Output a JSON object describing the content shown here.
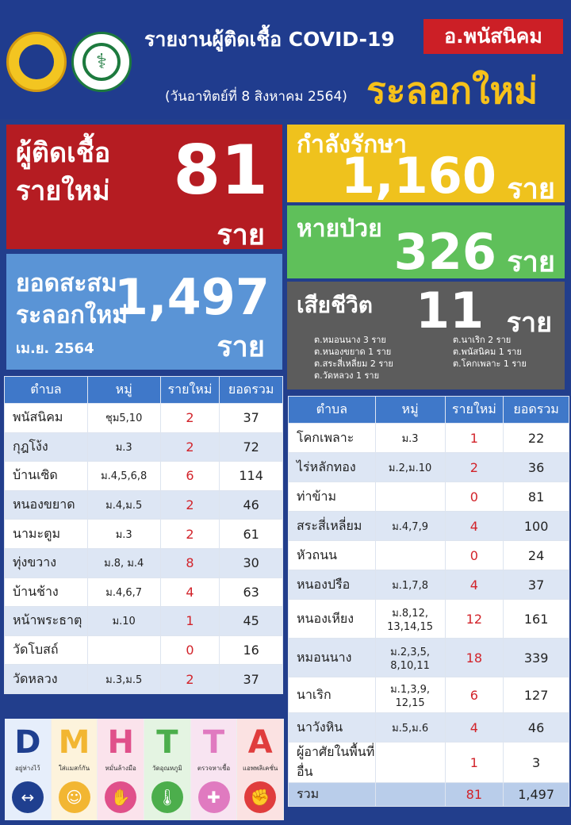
{
  "header": {
    "title": "รายงานผู้ติดเชื้อ COVID-19",
    "district": "อ.พนัสนิคม",
    "date": "(วันอาทิตย์ที่ 8 สิงหาคม 2564)",
    "wave": "ระลอกใหม่"
  },
  "stats": {
    "new": {
      "label1": "ผู้ติดเชื้อ",
      "label2": "รายใหม่",
      "value": "81",
      "unit": "ราย"
    },
    "cumulative": {
      "label1": "ยอดสะสม",
      "label2": "ระลอกใหม่",
      "label3": "เม.ย. 2564",
      "value": "1,497",
      "unit": "ราย"
    },
    "treating": {
      "label": "กำลังรักษา",
      "value": "1,160",
      "unit": "ราย"
    },
    "recovered": {
      "label": "หายป่วย",
      "value": "326",
      "unit": "ราย"
    },
    "deaths": {
      "label": "เสียชีวิต",
      "value": "11",
      "unit": "ราย",
      "list": [
        "ต.หมอนนาง 3 ราย",
        "ต.นาเริก 2 ราย",
        "ต.หนองขยาด 1 ราย",
        "ต.พนัสนิคม 1 ราย",
        "ต.สระสี่เหลี่ยม 2 ราย",
        "ต.โคกเพลาะ 1 ราย",
        "ต.วัดหลวง 1 ราย"
      ]
    }
  },
  "table_headers": {
    "tambon": "ตำบล",
    "moo": "หมู่",
    "new": "รายใหม่",
    "total": "ยอดรวม"
  },
  "left_rows": [
    {
      "tambon": "พนัสนิคม",
      "moo": "ชุม5,10",
      "new": "2",
      "total": "37"
    },
    {
      "tambon": "กุฎโง้ง",
      "moo": "ม.3",
      "new": "2",
      "total": "72"
    },
    {
      "tambon": "บ้านเซิด",
      "moo": "ม.4,5,6,8",
      "new": "6",
      "total": "114"
    },
    {
      "tambon": "หนองขยาด",
      "moo": "ม.4,ม.5",
      "new": "2",
      "total": "46"
    },
    {
      "tambon": "นามะตูม",
      "moo": "ม.3",
      "new": "2",
      "total": "61"
    },
    {
      "tambon": "ทุ่งขวาง",
      "moo": "ม.8, ม.4",
      "new": "8",
      "total": "30"
    },
    {
      "tambon": "บ้านช้าง",
      "moo": "ม.4,6,7",
      "new": "4",
      "total": "63"
    },
    {
      "tambon": "หน้าพระธาตุ",
      "moo": "ม.10",
      "new": "1",
      "total": "45"
    },
    {
      "tambon": "วัดโบสถ์",
      "moo": "",
      "new": "0",
      "total": "16"
    },
    {
      "tambon": "วัดหลวง",
      "moo": "ม.3,ม.5",
      "new": "2",
      "total": "37"
    }
  ],
  "right_rows": [
    {
      "tambon": "โคกเพลาะ",
      "moo": "ม.3",
      "new": "1",
      "total": "22"
    },
    {
      "tambon": "ไร่หลักทอง",
      "moo": "ม.2,ม.10",
      "new": "2",
      "total": "36"
    },
    {
      "tambon": "ท่าข้าม",
      "moo": "",
      "new": "0",
      "total": "81"
    },
    {
      "tambon": "สระสี่เหลี่ยม",
      "moo": "ม.4,7,9",
      "new": "4",
      "total": "100"
    },
    {
      "tambon": "หัวถนน",
      "moo": "",
      "new": "0",
      "total": "24"
    },
    {
      "tambon": "หนองปรือ",
      "moo": "ม.1,7,8",
      "new": "4",
      "total": "37"
    },
    {
      "tambon": "หนองเหียง",
      "moo": "ม.8,12, 13,14,15",
      "new": "12",
      "total": "161"
    },
    {
      "tambon": "หมอนนาง",
      "moo": "ม.2,3,5, 8,10,11",
      "new": "18",
      "total": "339"
    },
    {
      "tambon": "นาเริก",
      "moo": "ม.1,3,9, 12,15",
      "new": "6",
      "total": "127"
    },
    {
      "tambon": "นาวังหิน",
      "moo": "ม.5,ม.6",
      "new": "4",
      "total": "46"
    },
    {
      "tambon": "ผู้อาศัยในพื้นที่อื่น",
      "moo": "",
      "new": "1",
      "total": "3"
    }
  ],
  "total_row": {
    "label": "รวม",
    "new": "81",
    "total": "1,497"
  },
  "dmhtta": [
    {
      "letter": "D",
      "text": "อยู่ห่างไว้",
      "color": "#1f3f8f",
      "bg": "#e6eefb",
      "icon": "distance-icon"
    },
    {
      "letter": "M",
      "text": "ใส่แมสก์กัน",
      "color": "#f2b632",
      "bg": "#fdf3dc",
      "icon": "mask-icon"
    },
    {
      "letter": "H",
      "text": "หมั่นล้างมือ",
      "color": "#e0508a",
      "bg": "#fbe3ec",
      "icon": "handwash-icon"
    },
    {
      "letter": "T",
      "text": "วัดอุณหภูมิ",
      "color": "#4cae4c",
      "bg": "#e4f4e2",
      "icon": "thermometer-icon"
    },
    {
      "letter": "T",
      "text": "ตรวจหาเชื้อ",
      "color": "#e07ac0",
      "bg": "#f8e4f1",
      "icon": "test-icon"
    },
    {
      "letter": "A",
      "text": "แอพพลิเคชั่น",
      "color": "#e03d3d",
      "bg": "#fbe2e2",
      "icon": "app-icon"
    }
  ]
}
